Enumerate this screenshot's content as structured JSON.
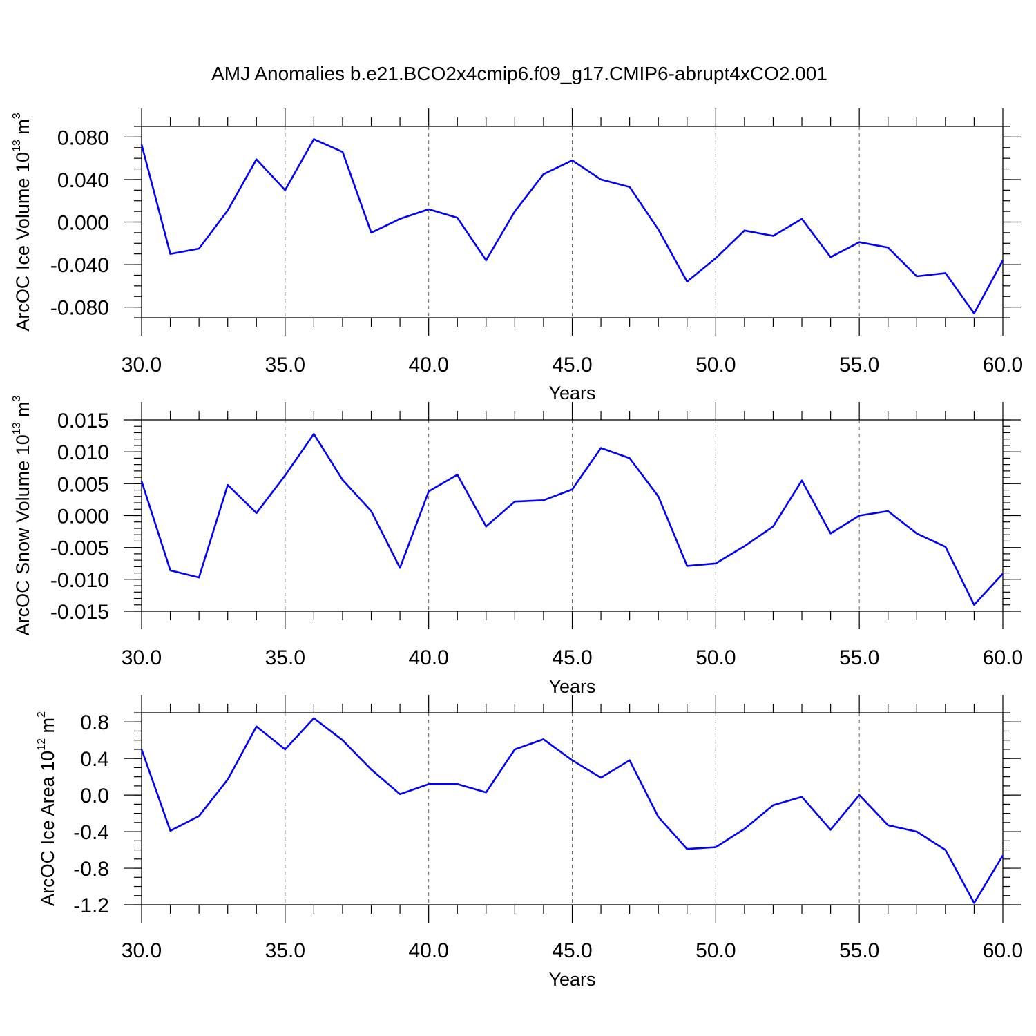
{
  "title": "AMJ Anomalies b.e21.BCO2x4cmip6.f09_g17.CMIP6-abrupt4xCO2.001",
  "chart_data": [
    {
      "type": "line",
      "ylabel_main": "ArcOC Ice Volume 10",
      "ylabel_sup": "13",
      "ylabel_unit": " m",
      "ylabel_unit_sup": "3",
      "xlabel": "Years",
      "xlim": [
        30,
        60
      ],
      "ylim": [
        -0.09,
        0.09
      ],
      "x_ticks": [
        "30.0",
        "35.0",
        "40.0",
        "45.0",
        "50.0",
        "55.0",
        "60.0"
      ],
      "y_ticks": [
        "0.080",
        "0.040",
        "0.000",
        "-0.040",
        "-0.080"
      ],
      "y_tick_values": [
        0.08,
        0.04,
        0.0,
        -0.04,
        -0.08
      ],
      "y_minor_step": 0.01,
      "grid_x": true,
      "x": [
        30,
        31,
        32,
        33,
        34,
        35,
        36,
        37,
        38,
        39,
        40,
        41,
        42,
        43,
        44,
        45,
        46,
        47,
        48,
        49,
        50,
        51,
        52,
        53,
        54,
        55,
        56,
        57,
        58,
        59,
        60
      ],
      "values": [
        0.073,
        -0.03,
        -0.025,
        0.011,
        0.059,
        0.03,
        0.078,
        0.066,
        -0.01,
        0.003,
        0.012,
        0.004,
        -0.036,
        0.01,
        0.045,
        0.058,
        0.04,
        0.033,
        -0.007,
        -0.056,
        -0.034,
        -0.008,
        -0.013,
        0.003,
        -0.033,
        -0.019,
        -0.024,
        -0.051,
        -0.048,
        -0.086,
        -0.036
      ]
    },
    {
      "type": "line",
      "ylabel_main": "ArcOC Snow Volume 10",
      "ylabel_sup": "13",
      "ylabel_unit": " m",
      "ylabel_unit_sup": "3",
      "xlabel": "Years",
      "xlim": [
        30,
        60
      ],
      "ylim": [
        -0.015,
        0.015
      ],
      "x_ticks": [
        "30.0",
        "35.0",
        "40.0",
        "45.0",
        "50.0",
        "55.0",
        "60.0"
      ],
      "y_ticks": [
        "0.015",
        "0.010",
        "0.005",
        "0.000",
        "-0.005",
        "-0.010",
        "-0.015"
      ],
      "y_tick_values": [
        0.015,
        0.01,
        0.005,
        0.0,
        -0.005,
        -0.01,
        -0.015
      ],
      "y_minor_step": 0.001,
      "grid_x": true,
      "x": [
        30,
        31,
        32,
        33,
        34,
        35,
        36,
        37,
        38,
        39,
        40,
        41,
        42,
        43,
        44,
        45,
        46,
        47,
        48,
        49,
        50,
        51,
        52,
        53,
        54,
        55,
        56,
        57,
        58,
        59,
        60
      ],
      "values": [
        0.0054,
        -0.0086,
        -0.0097,
        0.0048,
        0.0004,
        0.0063,
        0.0128,
        0.0056,
        0.0007,
        -0.0082,
        0.0038,
        0.0064,
        -0.0017,
        0.0022,
        0.0024,
        0.0041,
        0.0106,
        0.009,
        0.003,
        -0.0079,
        -0.0075,
        -0.0048,
        -0.0017,
        0.0055,
        -0.0028,
        0.0,
        0.0007,
        -0.0028,
        -0.0049,
        -0.014,
        -0.0091
      ]
    },
    {
      "type": "line",
      "ylabel_main": "ArcOC Ice Area 10",
      "ylabel_sup": "12",
      "ylabel_unit": " m",
      "ylabel_unit_sup": "2",
      "xlabel": "Years",
      "xlim": [
        30,
        60
      ],
      "ylim": [
        -1.2,
        0.9
      ],
      "x_ticks": [
        "30.0",
        "35.0",
        "40.0",
        "45.0",
        "50.0",
        "55.0",
        "60.0"
      ],
      "y_ticks": [
        "0.8",
        "0.4",
        "0.0",
        "-0.4",
        "-0.8",
        "-1.2"
      ],
      "y_tick_values": [
        0.8,
        0.4,
        0.0,
        -0.4,
        -0.8,
        -1.2
      ],
      "y_minor_step": 0.1,
      "grid_x": true,
      "x": [
        30,
        31,
        32,
        33,
        34,
        35,
        36,
        37,
        38,
        39,
        40,
        41,
        42,
        43,
        44,
        45,
        46,
        47,
        48,
        49,
        50,
        51,
        52,
        53,
        54,
        55,
        56,
        57,
        58,
        59,
        60
      ],
      "values": [
        0.5,
        -0.39,
        -0.23,
        0.17,
        0.75,
        0.5,
        0.84,
        0.6,
        0.28,
        0.01,
        0.12,
        0.12,
        0.03,
        0.5,
        0.61,
        0.38,
        0.19,
        0.38,
        -0.24,
        -0.59,
        -0.57,
        -0.37,
        -0.11,
        -0.02,
        -0.38,
        0.0,
        -0.33,
        -0.4,
        -0.6,
        -1.18,
        -0.66
      ]
    }
  ]
}
